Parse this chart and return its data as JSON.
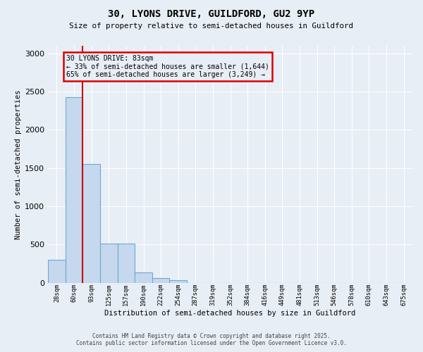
{
  "title1": "30, LYONS DRIVE, GUILDFORD, GU2 9YP",
  "title2": "Size of property relative to semi-detached houses in Guildford",
  "xlabel": "Distribution of semi-detached houses by size in Guildford",
  "ylabel": "Number of semi-detached properties",
  "bin_labels": [
    "28sqm",
    "60sqm",
    "93sqm",
    "125sqm",
    "157sqm",
    "190sqm",
    "222sqm",
    "254sqm",
    "287sqm",
    "319sqm",
    "352sqm",
    "384sqm",
    "416sqm",
    "449sqm",
    "481sqm",
    "513sqm",
    "546sqm",
    "578sqm",
    "610sqm",
    "643sqm",
    "675sqm"
  ],
  "bar_values": [
    300,
    2430,
    1550,
    510,
    510,
    130,
    60,
    35,
    0,
    0,
    0,
    0,
    0,
    0,
    0,
    0,
    0,
    0,
    0,
    0,
    0
  ],
  "bar_color": "#c5d8ee",
  "bar_edge_color": "#6aaad4",
  "bg_color": "#e8eef5",
  "grid_color": "#ffffff",
  "red_line_x": 1.5,
  "annotation_text": "30 LYONS DRIVE: 83sqm\n← 33% of semi-detached houses are smaller (1,644)\n65% of semi-detached houses are larger (3,249) →",
  "annotation_box_color": "#dd0000",
  "ylim": [
    0,
    3100
  ],
  "yticks": [
    0,
    500,
    1000,
    1500,
    2000,
    2500,
    3000
  ],
  "footer1": "Contains HM Land Registry data © Crown copyright and database right 2025.",
  "footer2": "Contains public sector information licensed under the Open Government Licence v3.0."
}
